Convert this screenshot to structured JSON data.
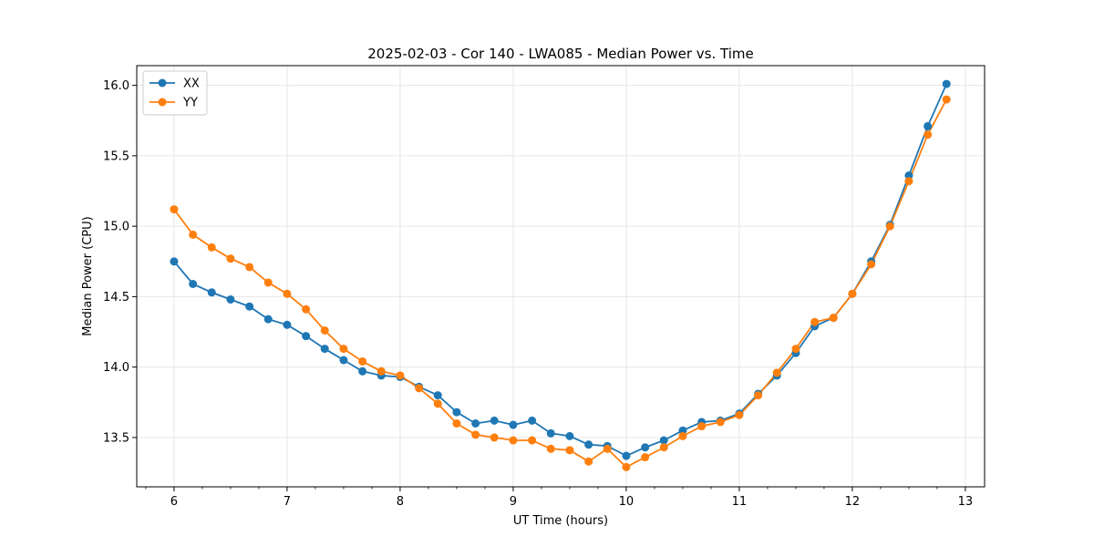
{
  "chart_data": {
    "type": "line",
    "title": "2025-02-03 - Cor 140 - LWA085 - Median Power vs. Time",
    "xlabel": "UT Time (hours)",
    "ylabel": "Median Power (CPU)",
    "xlim": [
      5.67,
      13.17
    ],
    "ylim": [
      13.15,
      16.14
    ],
    "xticks": [
      6,
      7,
      8,
      9,
      10,
      11,
      12,
      13
    ],
    "yticks": [
      13.5,
      14.0,
      14.5,
      15.0,
      15.5,
      16.0
    ],
    "xtick_labels": [
      "6",
      "7",
      "8",
      "9",
      "10",
      "11",
      "12",
      "13"
    ],
    "ytick_labels": [
      "13.5",
      "14.0",
      "14.5",
      "15.0",
      "15.5",
      "16.0"
    ],
    "grid": true,
    "legend_position": "top-left",
    "x": [
      6.0,
      6.167,
      6.333,
      6.5,
      6.667,
      6.833,
      7.0,
      7.167,
      7.333,
      7.5,
      7.667,
      7.833,
      8.0,
      8.167,
      8.333,
      8.5,
      8.667,
      8.833,
      9.0,
      9.167,
      9.333,
      9.5,
      9.667,
      9.833,
      10.0,
      10.167,
      10.333,
      10.5,
      10.667,
      10.833,
      11.0,
      11.167,
      11.333,
      11.5,
      11.667,
      11.833,
      12.0,
      12.167,
      12.333,
      12.5,
      12.667,
      12.833
    ],
    "series": [
      {
        "name": "XX",
        "color": "#1f77b4",
        "values": [
          14.75,
          14.59,
          14.53,
          14.48,
          14.43,
          14.34,
          14.3,
          14.22,
          14.13,
          14.05,
          13.97,
          13.94,
          13.93,
          13.86,
          13.8,
          13.68,
          13.6,
          13.62,
          13.59,
          13.62,
          13.53,
          13.51,
          13.45,
          13.44,
          13.37,
          13.43,
          13.48,
          13.55,
          13.61,
          13.62,
          13.67,
          13.81,
          13.94,
          14.1,
          14.29,
          14.35,
          14.52,
          14.75,
          15.01,
          15.36,
          15.71,
          16.01
        ]
      },
      {
        "name": "YY",
        "color": "#ff7f0e",
        "values": [
          15.12,
          14.94,
          14.85,
          14.77,
          14.71,
          14.6,
          14.52,
          14.41,
          14.26,
          14.13,
          14.04,
          13.97,
          13.94,
          13.85,
          13.74,
          13.6,
          13.52,
          13.5,
          13.48,
          13.48,
          13.42,
          13.41,
          13.33,
          13.42,
          13.29,
          13.36,
          13.43,
          13.51,
          13.58,
          13.61,
          13.66,
          13.8,
          13.96,
          14.13,
          14.32,
          14.35,
          14.52,
          14.73,
          15.0,
          15.32,
          15.65,
          15.9
        ]
      }
    ]
  }
}
